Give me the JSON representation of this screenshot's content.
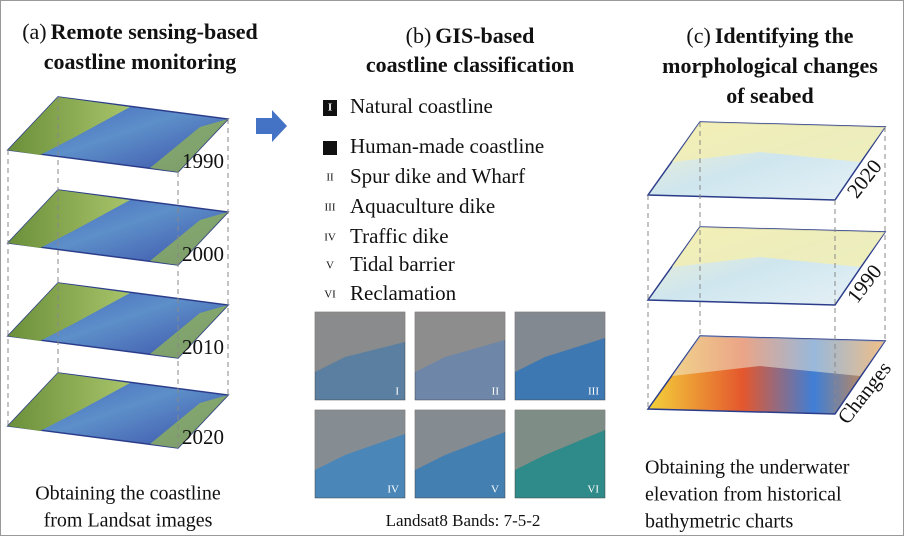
{
  "panels": [
    {
      "label": "(a)",
      "title_lines": [
        "Remote sensing-based",
        "coastline monitoring"
      ],
      "layers": [
        "1990",
        "2000",
        "2010",
        "2020"
      ],
      "caption_lines": [
        "Obtaining the coastline",
        "from Landsat images"
      ]
    },
    {
      "label": "(b)",
      "title_lines": [
        "GIS-based",
        "coastline classification"
      ],
      "legend": [
        {
          "marker": "I",
          "text": "Natural coastline"
        },
        {
          "text": "Human-made coastline"
        },
        {
          "marker": "II",
          "text": "Spur dike and Wharf"
        },
        {
          "marker": "III",
          "text": "Aquaculture dike"
        },
        {
          "marker": "IV",
          "text": "Traffic dike"
        },
        {
          "marker": "V",
          "text": "Tidal barrier"
        },
        {
          "marker": "VI",
          "text": "Reclamation"
        }
      ],
      "thumbnails": [
        "I",
        "II",
        "III",
        "IV",
        "V",
        "VI"
      ],
      "caption_lines": [
        "Landsat8 Bands: 7-5-2"
      ]
    },
    {
      "label": "(c)",
      "title_lines": [
        "Identifying the",
        "morphological changes",
        "of seabed"
      ],
      "layers": [
        "2020",
        "1990",
        "Changes"
      ],
      "caption_lines": [
        "Obtaining the underwater",
        "elevation from historical",
        "bathymetric charts"
      ]
    }
  ]
}
